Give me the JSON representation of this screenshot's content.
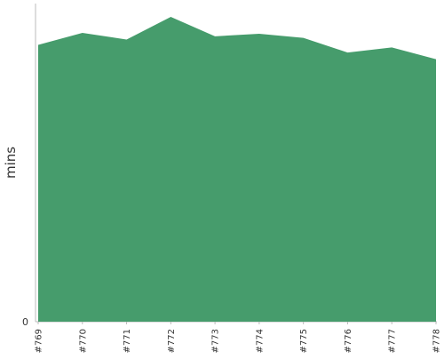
{
  "chart_data": {
    "type": "area",
    "title": "",
    "xlabel": "",
    "ylabel": "mins",
    "categories": [
      "#769",
      "#770",
      "#771",
      "#772",
      "#773",
      "#774",
      "#775",
      "#776",
      "#777",
      "#778"
    ],
    "series": [
      {
        "name": "",
        "values": [
          87,
          90.8,
          88.7,
          95.8,
          89.7,
          90.5,
          89.2,
          84.6,
          86.2,
          82.5
        ]
      }
    ],
    "y_tick_labels": [
      "0"
    ],
    "ylim": [
      0,
      100
    ],
    "grid": false,
    "legend": "none",
    "colors": {
      "area_fill": "#469c6c",
      "axis": "#bbbbbb",
      "text": "#333333"
    }
  }
}
